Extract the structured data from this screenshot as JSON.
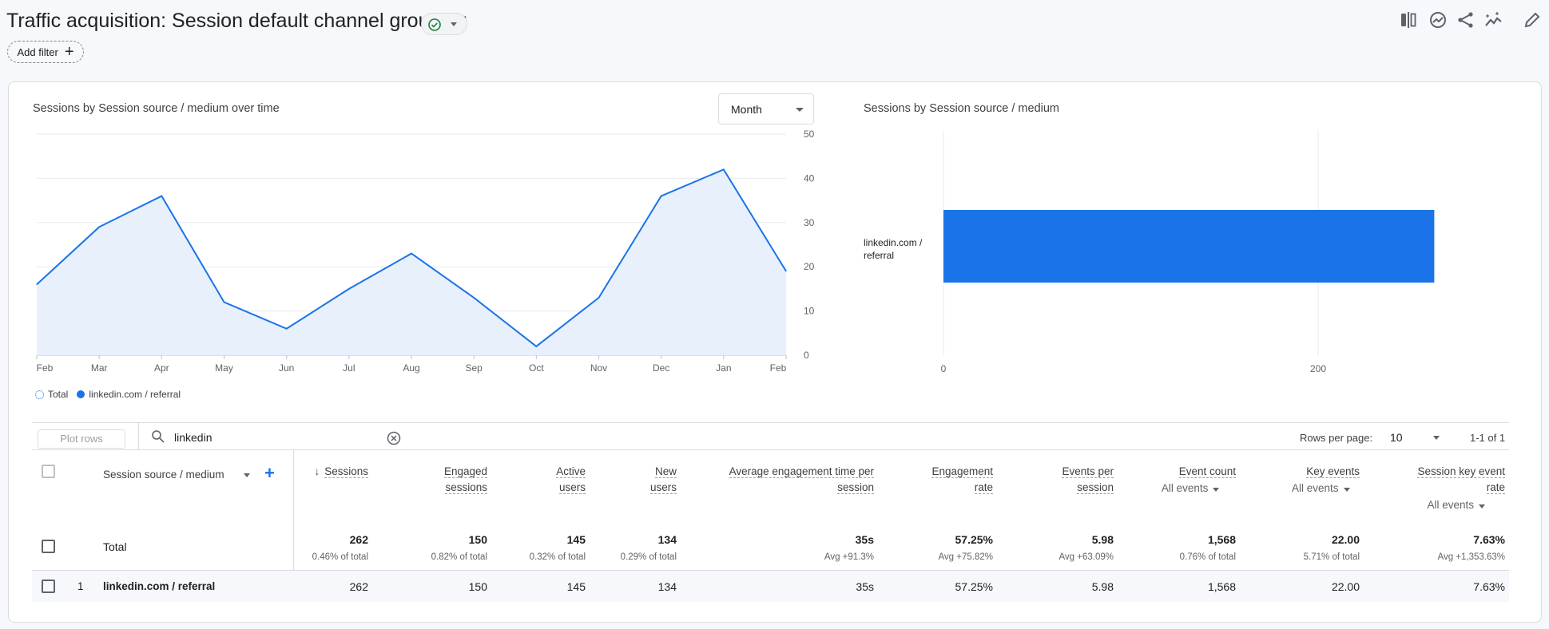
{
  "header": {
    "title": "Traffic acquisition: Session default channel grouping",
    "add_filter": "Add filter",
    "status_color": "#188038",
    "icons": [
      "compare-icon",
      "insights-icon",
      "share-icon",
      "anomaly-icon",
      "edit-icon"
    ]
  },
  "line_card": {
    "title": "Sessions by Session source / medium over time",
    "granularity": "Month",
    "legend": [
      {
        "label": "Total"
      },
      {
        "label": "linkedin.com / referral"
      }
    ]
  },
  "bar_card": {
    "title": "Sessions by Session source / medium"
  },
  "chart_data": [
    {
      "type": "area",
      "title": "Sessions by Session source / medium over time",
      "x": [
        "Feb",
        "Mar",
        "Apr",
        "May",
        "Jun",
        "Jul",
        "Aug",
        "Sep",
        "Oct",
        "Nov",
        "Dec",
        "Jan",
        "Feb"
      ],
      "series": [
        {
          "name": "linkedin.com / referral",
          "values": [
            16,
            29,
            36,
            12,
            6,
            15,
            23,
            13,
            2,
            13,
            36,
            42,
            19
          ],
          "color": "#1a73e8"
        }
      ],
      "yticks": [
        "0",
        "10",
        "20",
        "30",
        "40",
        "50"
      ],
      "ylim": [
        0,
        50
      ],
      "grid": true,
      "legend": "bottom-left",
      "yaxis_side": "right"
    },
    {
      "type": "bar",
      "orientation": "horizontal",
      "title": "Sessions by Session source / medium",
      "categories": [
        "linkedin.com / referral"
      ],
      "values": [
        262
      ],
      "xticks": [
        "0",
        "200"
      ],
      "xlim": [
        0,
        262
      ],
      "color": "#1a73e8"
    }
  ],
  "table": {
    "plot_rows": "Plot rows",
    "search_value": "linkedin",
    "rows_per_page_label": "Rows per page:",
    "rows_per_page": "10",
    "pagination": "1-1 of 1",
    "dimension_header": "Session source / medium",
    "columns": [
      {
        "l1": "Sessions",
        "l2": "",
        "sort": "↓",
        "total": "262",
        "total_sub": "0.46% of total",
        "row": "262"
      },
      {
        "l1": "Engaged",
        "l2": "sessions",
        "total": "150",
        "total_sub": "0.82% of total",
        "row": "150"
      },
      {
        "l1": "Active",
        "l2": "users",
        "total": "145",
        "total_sub": "0.32% of total",
        "row": "145"
      },
      {
        "l1": "New",
        "l2": "users",
        "total": "134",
        "total_sub": "0.29% of total",
        "row": "134"
      },
      {
        "l1": "Average engagement time per",
        "l2": "session",
        "total": "35s",
        "total_sub": "Avg +91.3%",
        "row": "35s"
      },
      {
        "l1": "Engagement",
        "l2": "rate",
        "total": "57.25%",
        "total_sub": "Avg +75.82%",
        "row": "57.25%"
      },
      {
        "l1": "Events per",
        "l2": "session",
        "total": "5.98",
        "total_sub": "Avg +63.09%",
        "row": "5.98"
      },
      {
        "l1": "Event count",
        "filter": "All events",
        "total": "1,568",
        "total_sub": "0.76% of total",
        "row": "1,568"
      },
      {
        "l1": "Key events",
        "filter": "All events",
        "total": "22.00",
        "total_sub": "5.71% of total",
        "row": "22.00"
      },
      {
        "l1": "Session key event",
        "l2": "rate",
        "filter": "All events",
        "total": "7.63%",
        "total_sub": "Avg +1,353.63%",
        "row": "7.63%"
      }
    ],
    "total_label": "Total",
    "rows": [
      {
        "index": "1",
        "dimension": "linkedin.com / referral"
      }
    ]
  }
}
